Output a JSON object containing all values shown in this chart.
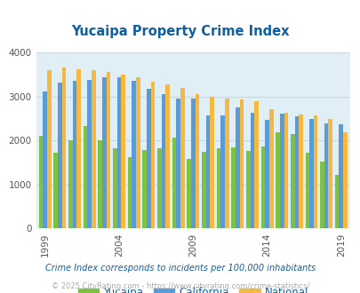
{
  "title": "Yucaipa Property Crime Index",
  "title_color": "#1060a0",
  "years": [
    1999,
    2000,
    2001,
    2002,
    2003,
    2004,
    2005,
    2006,
    2007,
    2008,
    2009,
    2010,
    2011,
    2012,
    2013,
    2014,
    2015,
    2016,
    2017,
    2018,
    2019
  ],
  "yucaipa": [
    2100,
    1720,
    2000,
    2330,
    2000,
    1820,
    1620,
    1780,
    1820,
    2060,
    1580,
    1750,
    1820,
    1840,
    1760,
    1870,
    2200,
    2140,
    1730,
    1530,
    1230
  ],
  "california": [
    3110,
    3330,
    3360,
    3380,
    3440,
    3440,
    3360,
    3170,
    3060,
    2960,
    2950,
    2580,
    2580,
    2750,
    2640,
    2480,
    2620,
    2560,
    2500,
    2400,
    2370
  ],
  "national": [
    3610,
    3660,
    3630,
    3610,
    3560,
    3500,
    3450,
    3340,
    3280,
    3210,
    3050,
    3000,
    2960,
    2930,
    2900,
    2720,
    2630,
    2600,
    2570,
    2490,
    2200
  ],
  "yucaipa_color": "#7dc243",
  "california_color": "#5b9bd5",
  "national_color": "#f4b942",
  "bg_color": "#e0eff5",
  "ylim": [
    0,
    4000
  ],
  "yticks": [
    0,
    1000,
    2000,
    3000,
    4000
  ],
  "xlabel_ticks": [
    1999,
    2004,
    2009,
    2014,
    2019
  ],
  "legend_labels": [
    "Yucaipa",
    "California",
    "National"
  ],
  "footnote": "Crime Index corresponds to incidents per 100,000 inhabitants",
  "footnote2": "© 2025 CityRating.com - https://www.cityrating.com/crime-statistics/",
  "footnote_color": "#1060a0",
  "footnote2_color": "#aaaaaa",
  "grid_color": "#c0d8e8"
}
